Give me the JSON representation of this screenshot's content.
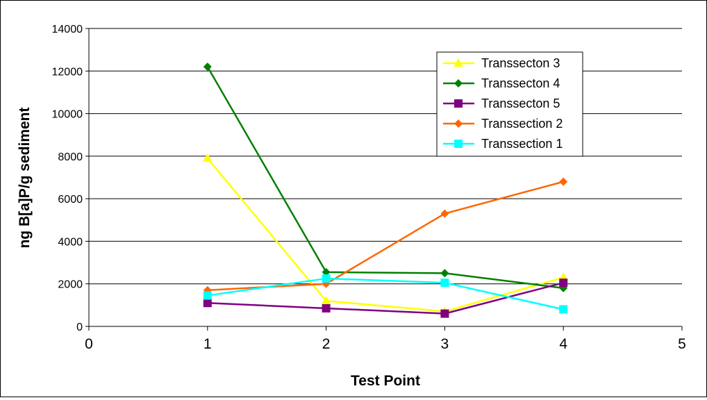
{
  "chart_data": {
    "type": "line",
    "title": "",
    "xlabel": "Test Point",
    "ylabel": "ng B[a]P/g sediment",
    "xlim": [
      0,
      5
    ],
    "ylim": [
      0,
      14000
    ],
    "x_ticks": [
      "0",
      "1",
      "2",
      "3",
      "4",
      "5"
    ],
    "y_ticks": [
      "0",
      "2000",
      "4000",
      "6000",
      "8000",
      "10000",
      "12000",
      "14000"
    ],
    "grid": "horizontal",
    "legend_position": "top-right",
    "series": [
      {
        "name": "Transsecton 3",
        "color": "#FFFF00",
        "marker": "triangle",
        "x": [
          1,
          2,
          3,
          4
        ],
        "y": [
          7900,
          1200,
          700,
          2300
        ]
      },
      {
        "name": "Transsecton 4",
        "color": "#008000",
        "marker": "diamond",
        "x": [
          1,
          2,
          3,
          4
        ],
        "y": [
          12200,
          2550,
          2500,
          1800
        ]
      },
      {
        "name": "Transsecton 5",
        "color": "#800080",
        "marker": "square",
        "x": [
          1,
          2,
          3,
          4
        ],
        "y": [
          1100,
          850,
          600,
          2050
        ]
      },
      {
        "name": "Transsection 2",
        "color": "#FF6600",
        "marker": "diamond",
        "x": [
          1,
          2,
          3,
          4
        ],
        "y": [
          1700,
          2000,
          5300,
          6800
        ]
      },
      {
        "name": "Transsection 1",
        "color": "#00FFFF",
        "marker": "square",
        "x": [
          1,
          2,
          3,
          4
        ],
        "y": [
          1450,
          2250,
          2050,
          800
        ]
      }
    ]
  }
}
